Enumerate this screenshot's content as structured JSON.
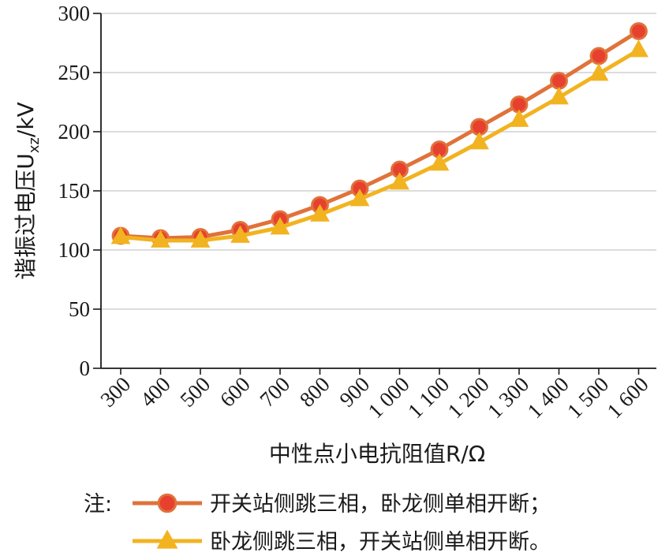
{
  "chart_data": {
    "type": "line",
    "x": [
      300,
      400,
      500,
      600,
      700,
      800,
      900,
      1000,
      1100,
      1200,
      1300,
      1400,
      1500,
      1600
    ],
    "x_tick_labels": [
      "300",
      "400",
      "500",
      "600",
      "700",
      "800",
      "900",
      "1 000",
      "1 100",
      "1 200",
      "1 300",
      "1 400",
      "1 500",
      "1 600"
    ],
    "xlabel": "中性点小电抗阻值R/Ω",
    "ylabel": "谐振过电压U_xz/kV",
    "ylim": [
      0,
      300
    ],
    "y_ticks": [
      0,
      50,
      100,
      150,
      200,
      250,
      300
    ],
    "grid": "horizontal",
    "series": [
      {
        "name": "开关站侧跳三相，卧龙侧单相开断；",
        "marker": "circle",
        "color": "#e0723a",
        "marker_fill": "#e8402e",
        "values": [
          112,
          110,
          111,
          117,
          126,
          138,
          152,
          168,
          185,
          204,
          223,
          243,
          264,
          285
        ]
      },
      {
        "name": "卧龙侧跳三相，开关站侧单相开断。",
        "marker": "triangle",
        "color": "#f2b320",
        "marker_fill": "#f2b320",
        "values": [
          111,
          108,
          108,
          112,
          119,
          130,
          143,
          157,
          173,
          191,
          210,
          229,
          249,
          269
        ]
      }
    ]
  },
  "note": {
    "prefix": "注:"
  }
}
